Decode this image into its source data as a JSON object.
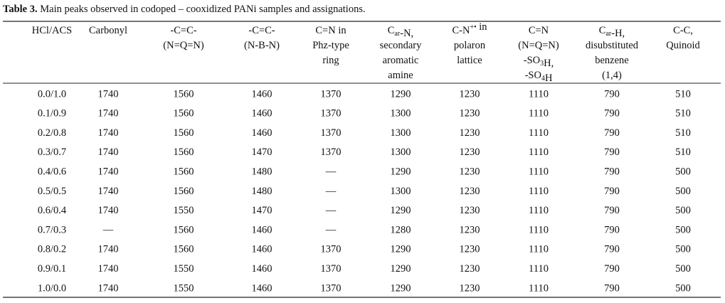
{
  "title": {
    "label": "Table 3.",
    "text": "Main peaks observed in codoped – cooxidized PANi samples and assignations."
  },
  "header": [
    [
      [
        "HCl/ACS"
      ]
    ],
    [
      [
        "Carbonyl"
      ]
    ],
    [
      [
        "-C=C-"
      ],
      [
        "(N=Q=N)"
      ]
    ],
    [
      [
        "-C=C-"
      ],
      [
        "(N-B-N)"
      ]
    ],
    [
      [
        "C=N in"
      ],
      [
        "Phz-type"
      ],
      [
        "ring"
      ]
    ],
    [
      [
        "C",
        {
          "sub": "ar"
        },
        "-N,"
      ],
      [
        "secondary"
      ],
      [
        "aromatic"
      ],
      [
        "amine"
      ]
    ],
    [
      [
        "C-N",
        {
          "sup": "+•"
        },
        " in"
      ],
      [
        "polaron"
      ],
      [
        "lattice"
      ]
    ],
    [
      [
        "C=N"
      ],
      [
        "(N=Q=N)"
      ],
      [
        "-SO",
        {
          "sub": "3"
        },
        "H,"
      ],
      [
        "-SO",
        {
          "sub": "4"
        },
        "H"
      ]
    ],
    [
      [
        "C",
        {
          "sub": "ar"
        },
        "-H,"
      ],
      [
        "disubstituted"
      ],
      [
        "benzene"
      ],
      [
        "(1,4)"
      ]
    ],
    [
      [
        "C-C,"
      ],
      [
        "Quinoid"
      ]
    ]
  ],
  "rows": [
    [
      "0.0/1.0",
      1740,
      1560,
      1460,
      1370,
      1290,
      1230,
      1110,
      790,
      510
    ],
    [
      "0.1/0.9",
      1740,
      1560,
      1460,
      1370,
      1300,
      1230,
      1110,
      790,
      510
    ],
    [
      "0.2/0.8",
      1740,
      1560,
      1460,
      1370,
      1300,
      1230,
      1110,
      790,
      510
    ],
    [
      "0.3/0.7",
      1740,
      1560,
      1470,
      1370,
      1300,
      1230,
      1110,
      790,
      510
    ],
    [
      "0.4/0.6",
      1740,
      1560,
      1480,
      "—",
      1290,
      1230,
      1110,
      790,
      500
    ],
    [
      "0.5/0.5",
      1740,
      1560,
      1480,
      "—",
      1300,
      1230,
      1110,
      790,
      500
    ],
    [
      "0.6/0.4",
      1740,
      1550,
      1470,
      "—",
      1290,
      1230,
      1110,
      790,
      500
    ],
    [
      "0.7/0.3",
      "—",
      1560,
      1460,
      "—",
      1280,
      1230,
      1110,
      790,
      500
    ],
    [
      "0.8/0.2",
      1740,
      1560,
      1460,
      1370,
      1290,
      1230,
      1110,
      790,
      500
    ],
    [
      "0.9/0.1",
      1740,
      1550,
      1460,
      1370,
      1290,
      1230,
      1110,
      790,
      500
    ],
    [
      "1.0/0.0",
      1740,
      1550,
      1460,
      1370,
      1290,
      1230,
      1110,
      790,
      500
    ]
  ]
}
